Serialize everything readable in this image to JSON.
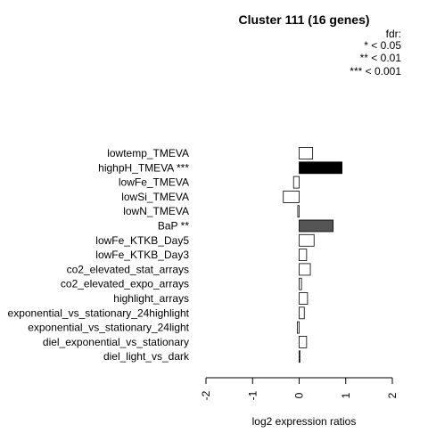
{
  "chart_data": {
    "type": "bar",
    "orientation": "horizontal",
    "title": "Cluster 111 (16 genes)",
    "legend": {
      "title": "fdr:",
      "entries": [
        "* < 0.05",
        "** < 0.01",
        "*** < 0.001"
      ],
      "placement": "top-right"
    },
    "xlabel": "log2 expression ratios",
    "xlim": [
      -2,
      2
    ],
    "xticks": [
      "-2",
      "-1",
      "0",
      "1",
      "2"
    ],
    "grid": false,
    "categories": [
      "lowtemp_TMEVA",
      "highpH_TMEVA ***",
      "lowFe_TMEVA",
      "lowSi_TMEVA",
      "lowN_TMEVA",
      "BaP **",
      "lowFe_KTKB_Day5",
      "lowFe_KTKB_Day3",
      "co2_elevated_stat_arrays",
      "co2_elevated_expo_arrays",
      "highlight_arrays",
      "exponential_vs_stationary_24highlight",
      "exponential_vs_stationary_24light",
      "diel_exponential_vs_stationary",
      "diel_light_vs_dark"
    ],
    "values": [
      0.29,
      0.92,
      -0.12,
      -0.34,
      -0.03,
      0.73,
      0.32,
      0.16,
      0.24,
      0.05,
      0.18,
      0.11,
      -0.04,
      0.16,
      0.01
    ],
    "significance": [
      "",
      "***",
      "",
      "",
      "",
      "**",
      "",
      "",
      "",
      "",
      "",
      "",
      "",
      "",
      ""
    ],
    "colors": {
      "none": "#ffffff",
      "*": "#bbbbbb",
      "**": "#555555",
      "***": "#000000",
      "stroke": "#000000"
    }
  }
}
